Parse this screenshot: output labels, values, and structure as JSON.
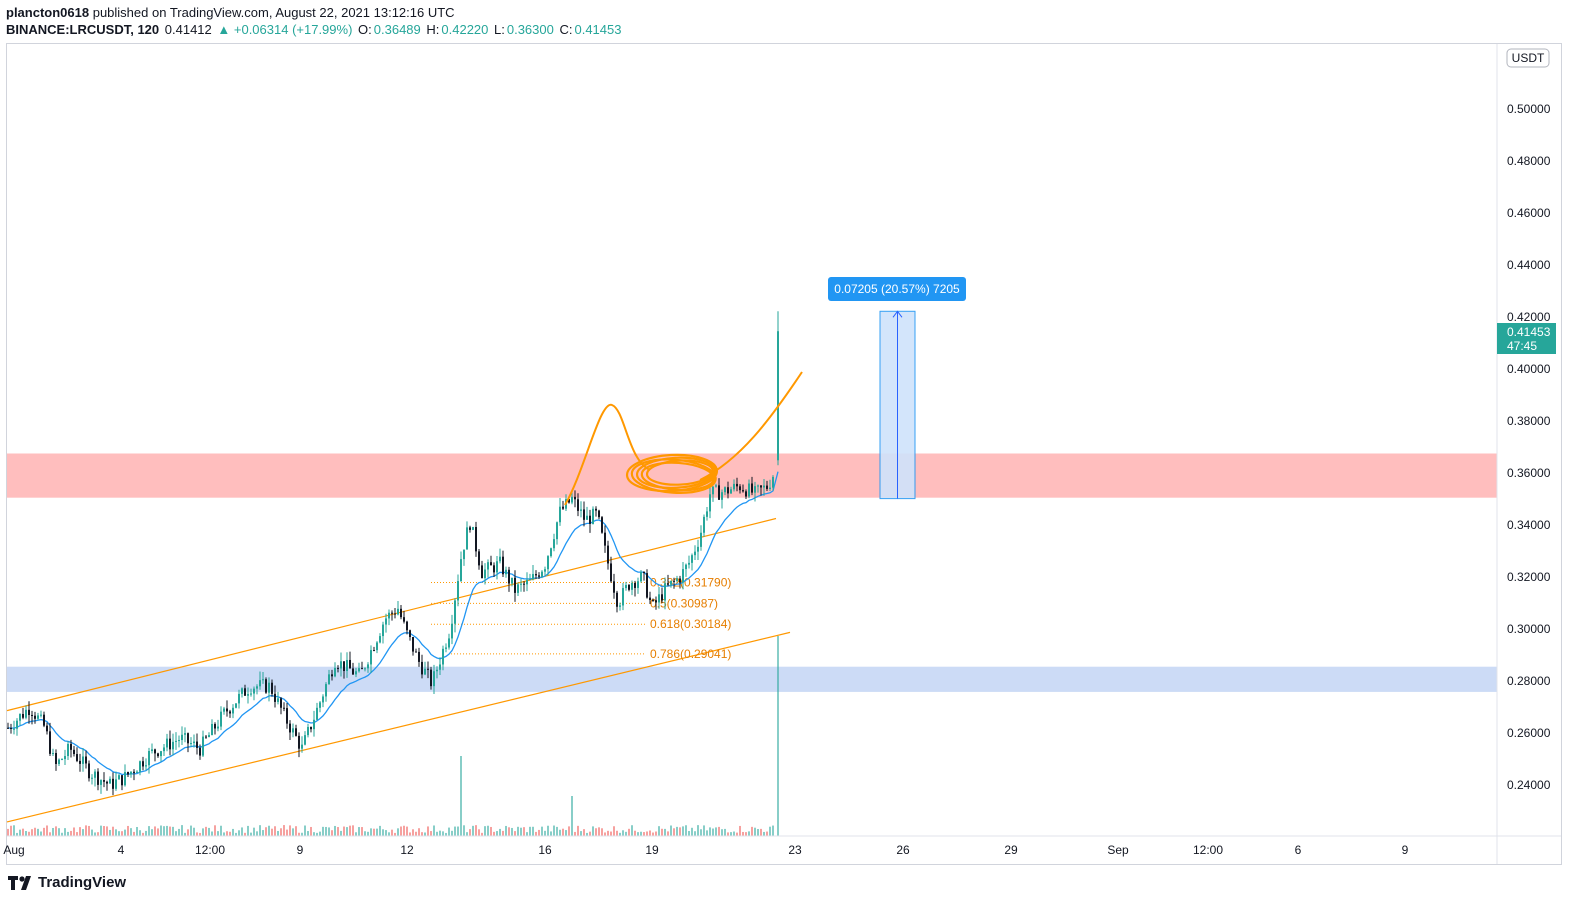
{
  "header": {
    "author": "plancton0618",
    "published_text": "published on TradingView.com, August 22, 2021 13:12:16 UTC",
    "symbol": "BINANCE:LRCUSDT, 120",
    "last": "0.41412",
    "change": "▲ +0.06314 (+17.99%)",
    "o_label": "O:",
    "o_value": "0.36489",
    "h_label": "H:",
    "h_value": "0.42220",
    "l_label": "L:",
    "l_value": "0.36300",
    "c_label": "C:",
    "c_value": "0.41453"
  },
  "currency_label": "USDT",
  "price_tag": {
    "price": "0.41453",
    "countdown": "47:45"
  },
  "measure_label": "0.07205 (20.57%) 7205",
  "brand": "TradingView",
  "colors": {
    "up": "#26a69a",
    "down": "#131722",
    "ema": "#2196f3",
    "channel": "#ff9800",
    "resistance_zone": "#ffb3b3",
    "support_zone": "#c9d9f5",
    "measure_fill": "#cfe3fb",
    "measure_line": "#2962ff",
    "measure_label_bg": "#2196f3"
  },
  "chart_data": {
    "type": "candlestick",
    "symbol": "BINANCE:LRCUSDT",
    "interval": "120",
    "y_axis": {
      "range": [
        0.225,
        0.52
      ],
      "ticks": [
        "0.24000",
        "0.26000",
        "0.28000",
        "0.30000",
        "0.32000",
        "0.34000",
        "0.36000",
        "0.38000",
        "0.40000",
        "0.42000",
        "0.44000",
        "0.46000",
        "0.48000",
        "0.50000"
      ]
    },
    "x_axis": {
      "ticks": [
        "Aug",
        "4",
        "12:00",
        "9",
        "12",
        "16",
        "19",
        "23",
        "26",
        "29",
        "Sep",
        "12:00",
        "6",
        "9"
      ]
    },
    "zones": [
      {
        "type": "resistance",
        "from": 0.3505,
        "to": 0.3675
      },
      {
        "type": "support",
        "from": 0.2758,
        "to": 0.2855
      }
    ],
    "fib_levels": [
      {
        "label": "0.382(0.31790)",
        "value": 0.3179
      },
      {
        "label": "0.5(0.30987)",
        "value": 0.30987
      },
      {
        "label": "0.618(0.30184)",
        "value": 0.30184
      },
      {
        "label": "0.786(0.29041)",
        "value": 0.29041
      }
    ],
    "measure": {
      "from": 0.35015,
      "to": 0.4222,
      "change": 0.07205,
      "percent": 20.57
    },
    "last_close": 0.41453
  }
}
